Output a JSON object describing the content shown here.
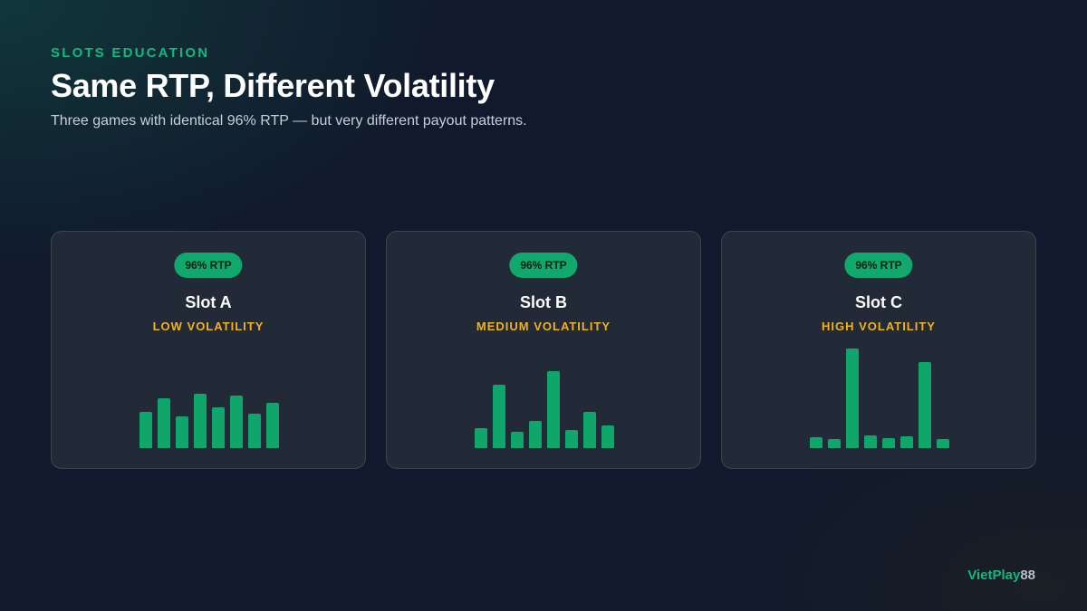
{
  "header": {
    "eyebrow": "SLOTS EDUCATION",
    "title": "Same RTP, Different Volatility",
    "subtitle": "Three games with identical 96% RTP — but very different payout patterns."
  },
  "cards": [
    {
      "badge": "96% RTP",
      "name": "Slot A",
      "volatility": "LOW VOLATILITY"
    },
    {
      "badge": "96% RTP",
      "name": "Slot B",
      "volatility": "MEDIUM VOLATILITY"
    },
    {
      "badge": "96% RTP",
      "name": "Slot C",
      "volatility": "HIGH VOLATILITY"
    }
  ],
  "colors": {
    "accent_green": "#10b981",
    "bar_green": "#0fa66b",
    "volatility_gold": "#f2b21b",
    "background": "#111a2c"
  },
  "brand": {
    "part1": "VietPlay",
    "part2": "88"
  },
  "chart_data": [
    {
      "type": "bar",
      "series": [
        {
          "values": [
            40,
            55,
            35,
            60,
            45,
            58,
            38,
            50
          ]
        }
      ]
    },
    {
      "type": "bar",
      "series": [
        {
          "values": [
            22,
            70,
            18,
            30,
            85,
            20,
            40,
            25
          ]
        }
      ]
    },
    {
      "type": "bar",
      "series": [
        {
          "values": [
            12,
            10,
            110,
            14,
            11,
            13,
            95,
            10
          ]
        }
      ]
    }
  ]
}
